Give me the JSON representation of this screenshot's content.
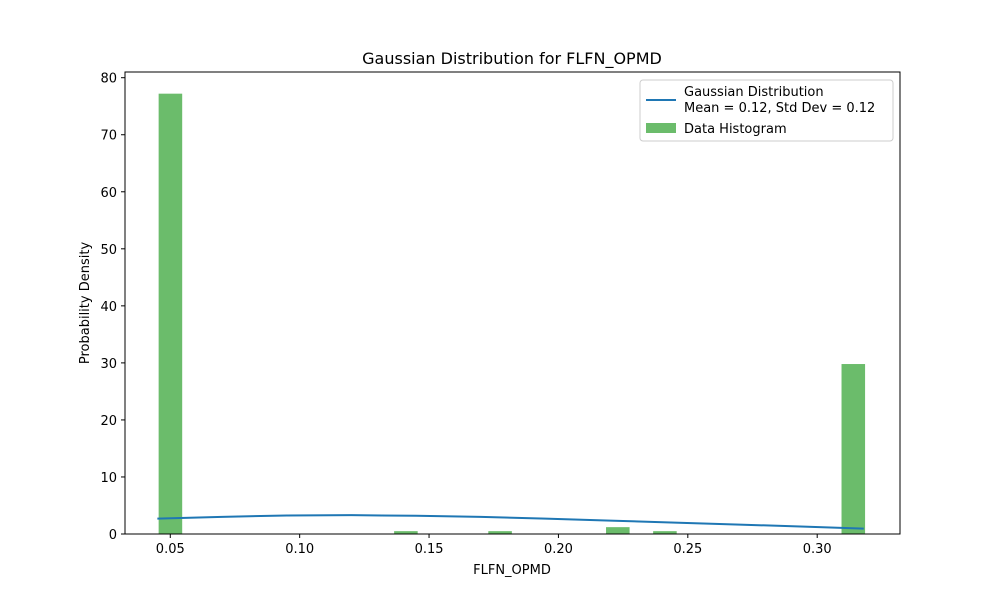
{
  "chart_data": {
    "type": "bar",
    "title": "Gaussian Distribution for FLFN_OPMD",
    "xlabel": "FLFN_OPMD",
    "ylabel": "Probability Density",
    "xlim": [
      0.0325,
      0.332
    ],
    "ylim": [
      0,
      81
    ],
    "x_ticks": [
      0.05,
      0.1,
      0.15,
      0.2,
      0.25,
      0.3
    ],
    "x_tick_labels": [
      "0.05",
      "0.10",
      "0.15",
      "0.20",
      "0.25",
      "0.30"
    ],
    "y_ticks": [
      0,
      10,
      20,
      30,
      40,
      50,
      60,
      70,
      80
    ],
    "y_tick_labels": [
      "0",
      "10",
      "20",
      "30",
      "40",
      "50",
      "60",
      "70",
      "80"
    ],
    "grid": false,
    "legend_position": "top-right",
    "colors": {
      "histogram": "#2ca02c",
      "curve": "#1f77b4"
    },
    "series": [
      {
        "name": "Gaussian Distribution\nMean = 0.12, Std Dev = 0.12",
        "kind": "line",
        "mean": 0.12,
        "std": 0.12,
        "x": [
          0.045,
          0.07,
          0.095,
          0.12,
          0.145,
          0.17,
          0.195,
          0.22,
          0.245,
          0.27,
          0.295,
          0.318
        ],
        "y": [
          2.7,
          3.0,
          3.25,
          3.3,
          3.2,
          3.0,
          2.7,
          2.35,
          2.0,
          1.65,
          1.3,
          0.95
        ]
      },
      {
        "name": "Data Histogram",
        "kind": "histogram",
        "bins": [
          {
            "x0": 0.0455,
            "x1": 0.0546,
            "value": 77.2
          },
          {
            "x0": 0.1365,
            "x1": 0.1456,
            "value": 0.5
          },
          {
            "x0": 0.1729,
            "x1": 0.182,
            "value": 0.5
          },
          {
            "x0": 0.2184,
            "x1": 0.2275,
            "value": 1.2
          },
          {
            "x0": 0.2366,
            "x1": 0.2457,
            "value": 0.5
          },
          {
            "x0": 0.3094,
            "x1": 0.3185,
            "value": 29.8
          }
        ]
      }
    ]
  }
}
